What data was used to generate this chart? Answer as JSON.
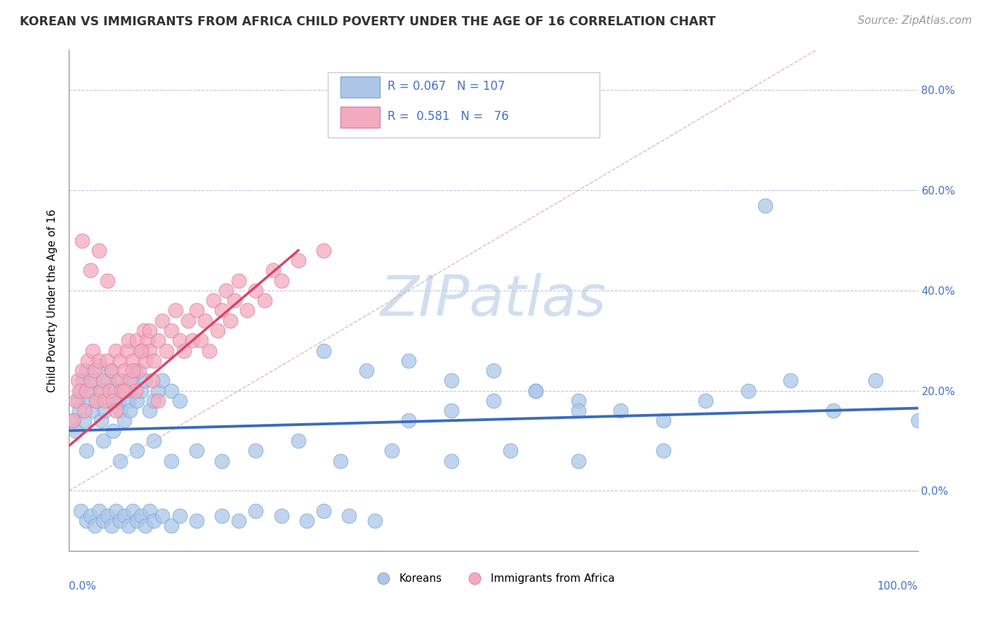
{
  "title": "KOREAN VS IMMIGRANTS FROM AFRICA CHILD POVERTY UNDER THE AGE OF 16 CORRELATION CHART",
  "source": "Source: ZipAtlas.com",
  "ylabel": "Child Poverty Under the Age of 16",
  "xlim": [
    0.0,
    1.0
  ],
  "ylim": [
    -0.12,
    0.88
  ],
  "yticks": [
    0.0,
    0.2,
    0.4,
    0.6,
    0.8
  ],
  "ytick_labels": [
    "0.0%",
    "20.0%",
    "40.0%",
    "60.0%",
    "80.0%"
  ],
  "korean_color": "#adc6e8",
  "africa_color": "#f4aabe",
  "korean_line_color": "#3a6bbf",
  "africa_line_color": "#d9436a",
  "diagonal_color": "#c8b0b8",
  "watermark_color": "#d0dff0",
  "title_fontsize": 12.5,
  "source_fontsize": 11,
  "ylabel_fontsize": 11,
  "korean_R": 0.067,
  "korean_N": 107,
  "africa_R": 0.581,
  "africa_N": 76,
  "korean_line_x": [
    0.0,
    1.0
  ],
  "korean_line_y": [
    0.12,
    0.165
  ],
  "africa_line_x": [
    0.0,
    0.27
  ],
  "africa_line_y": [
    0.09,
    0.48
  ],
  "korean_x": [
    0.005,
    0.008,
    0.01,
    0.012,
    0.014,
    0.016,
    0.018,
    0.02,
    0.022,
    0.025,
    0.028,
    0.03,
    0.032,
    0.035,
    0.038,
    0.04,
    0.042,
    0.045,
    0.048,
    0.05,
    0.052,
    0.055,
    0.058,
    0.06,
    0.062,
    0.065,
    0.068,
    0.07,
    0.072,
    0.075,
    0.078,
    0.08,
    0.085,
    0.09,
    0.095,
    0.1,
    0.105,
    0.11,
    0.12,
    0.13,
    0.014,
    0.02,
    0.025,
    0.03,
    0.035,
    0.04,
    0.045,
    0.05,
    0.055,
    0.06,
    0.065,
    0.07,
    0.075,
    0.08,
    0.085,
    0.09,
    0.095,
    0.1,
    0.11,
    0.12,
    0.13,
    0.15,
    0.18,
    0.2,
    0.22,
    0.25,
    0.28,
    0.3,
    0.33,
    0.36,
    0.4,
    0.45,
    0.5,
    0.55,
    0.6,
    0.65,
    0.7,
    0.75,
    0.8,
    0.85,
    0.9,
    0.95,
    1.0,
    0.3,
    0.35,
    0.4,
    0.45,
    0.5,
    0.55,
    0.6,
    0.02,
    0.04,
    0.06,
    0.08,
    0.1,
    0.12,
    0.15,
    0.18,
    0.22,
    0.27,
    0.32,
    0.38,
    0.45,
    0.52,
    0.6,
    0.7,
    0.82
  ],
  "korean_y": [
    0.14,
    0.12,
    0.18,
    0.16,
    0.2,
    0.22,
    0.14,
    0.24,
    0.18,
    0.2,
    0.16,
    0.22,
    0.18,
    0.25,
    0.14,
    0.2,
    0.16,
    0.22,
    0.18,
    0.24,
    0.12,
    0.2,
    0.18,
    0.16,
    0.22,
    0.14,
    0.2,
    0.18,
    0.16,
    0.22,
    0.24,
    0.18,
    0.2,
    0.22,
    0.16,
    0.18,
    0.2,
    0.22,
    0.2,
    0.18,
    -0.04,
    -0.06,
    -0.05,
    -0.07,
    -0.04,
    -0.06,
    -0.05,
    -0.07,
    -0.04,
    -0.06,
    -0.05,
    -0.07,
    -0.04,
    -0.06,
    -0.05,
    -0.07,
    -0.04,
    -0.06,
    -0.05,
    -0.07,
    -0.05,
    -0.06,
    -0.05,
    -0.06,
    -0.04,
    -0.05,
    -0.06,
    -0.04,
    -0.05,
    -0.06,
    0.14,
    0.16,
    0.18,
    0.2,
    0.18,
    0.16,
    0.14,
    0.18,
    0.2,
    0.22,
    0.16,
    0.22,
    0.14,
    0.28,
    0.24,
    0.26,
    0.22,
    0.24,
    0.2,
    0.16,
    0.08,
    0.1,
    0.06,
    0.08,
    0.1,
    0.06,
    0.08,
    0.06,
    0.08,
    0.1,
    0.06,
    0.08,
    0.06,
    0.08,
    0.06,
    0.08,
    0.57
  ],
  "africa_x": [
    0.005,
    0.008,
    0.01,
    0.012,
    0.015,
    0.018,
    0.02,
    0.022,
    0.025,
    0.028,
    0.03,
    0.032,
    0.035,
    0.038,
    0.04,
    0.042,
    0.045,
    0.048,
    0.05,
    0.052,
    0.055,
    0.058,
    0.06,
    0.062,
    0.065,
    0.068,
    0.07,
    0.072,
    0.075,
    0.078,
    0.08,
    0.082,
    0.085,
    0.088,
    0.09,
    0.092,
    0.095,
    0.098,
    0.1,
    0.105,
    0.11,
    0.115,
    0.12,
    0.125,
    0.13,
    0.135,
    0.14,
    0.145,
    0.15,
    0.155,
    0.16,
    0.165,
    0.17,
    0.175,
    0.18,
    0.185,
    0.19,
    0.195,
    0.2,
    0.21,
    0.22,
    0.23,
    0.24,
    0.25,
    0.27,
    0.3,
    0.015,
    0.025,
    0.035,
    0.045,
    0.055,
    0.065,
    0.075,
    0.085,
    0.095,
    0.105
  ],
  "africa_y": [
    0.14,
    0.18,
    0.22,
    0.2,
    0.24,
    0.16,
    0.2,
    0.26,
    0.22,
    0.28,
    0.24,
    0.18,
    0.26,
    0.2,
    0.22,
    0.18,
    0.26,
    0.2,
    0.24,
    0.18,
    0.28,
    0.22,
    0.26,
    0.2,
    0.24,
    0.28,
    0.3,
    0.22,
    0.26,
    0.2,
    0.3,
    0.24,
    0.28,
    0.32,
    0.26,
    0.3,
    0.28,
    0.22,
    0.26,
    0.3,
    0.34,
    0.28,
    0.32,
    0.36,
    0.3,
    0.28,
    0.34,
    0.3,
    0.36,
    0.3,
    0.34,
    0.28,
    0.38,
    0.32,
    0.36,
    0.4,
    0.34,
    0.38,
    0.42,
    0.36,
    0.4,
    0.38,
    0.44,
    0.42,
    0.46,
    0.48,
    0.5,
    0.44,
    0.48,
    0.42,
    0.16,
    0.2,
    0.24,
    0.28,
    0.32,
    0.18
  ]
}
